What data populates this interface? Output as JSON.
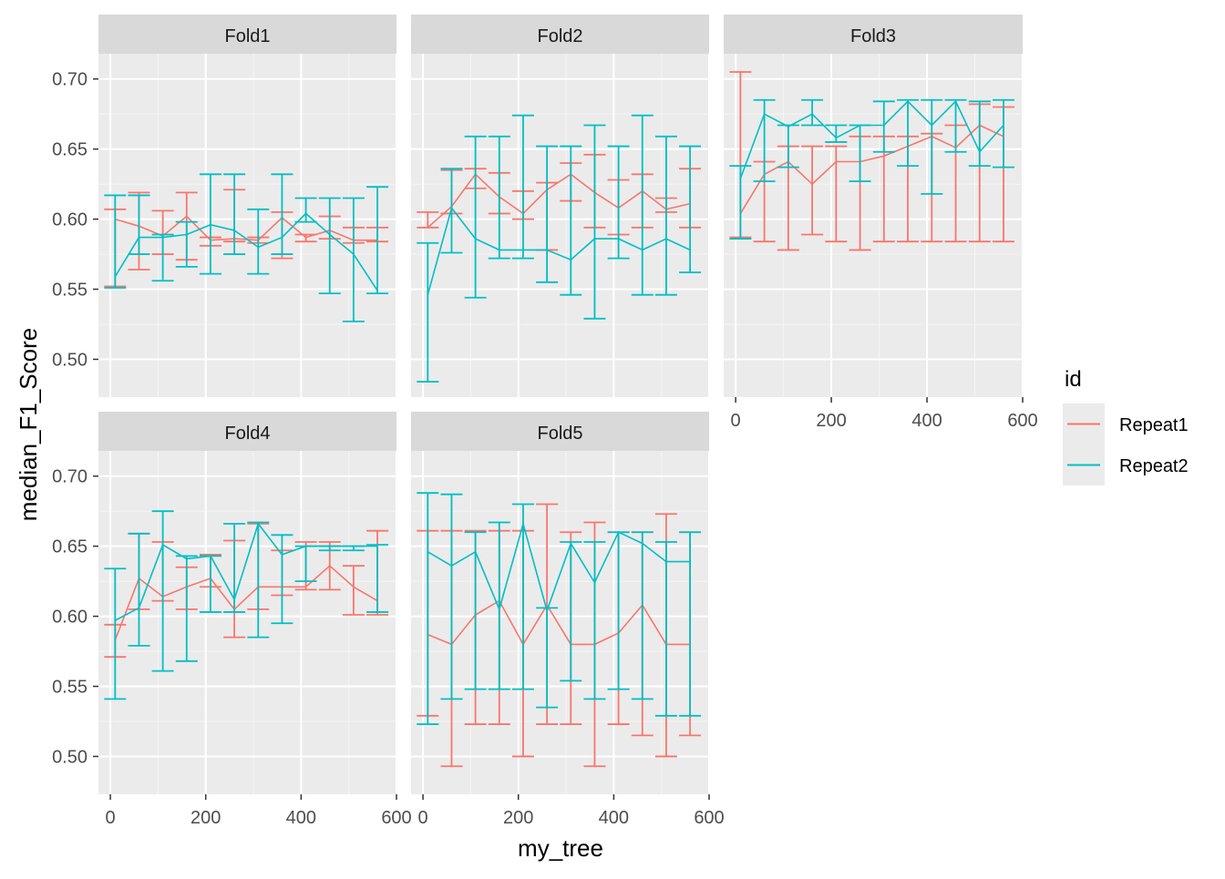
{
  "chart_data": {
    "type": "line",
    "facet_by": "fold",
    "xlabel": "my_tree",
    "ylabel": "median_F1_Score",
    "xlim": [
      -25,
      600
    ],
    "ylim": [
      0.473,
      0.718
    ],
    "x_ticks": [
      0,
      200,
      400,
      600
    ],
    "y_ticks": [
      0.5,
      0.55,
      0.6,
      0.65,
      0.7
    ],
    "y_tick_labels": [
      "0.50",
      "0.55",
      "0.60",
      "0.65",
      "0.70"
    ],
    "x_tick_labels": [
      "0",
      "200",
      "400",
      "600"
    ],
    "grid": true,
    "error_bars": true,
    "legend": {
      "title": "id",
      "position": "right",
      "entries": [
        {
          "name": "Repeat1",
          "color": "#F8766D"
        },
        {
          "name": "Repeat2",
          "color": "#00BFC4"
        }
      ]
    },
    "x": [
      10,
      60,
      110,
      160,
      210,
      260,
      310,
      360,
      410,
      460,
      510,
      560
    ],
    "panels": [
      {
        "title": "Fold1",
        "series": [
          {
            "name": "Repeat1",
            "y": [
              0.6,
              0.595,
              0.588,
              0.602,
              0.585,
              0.586,
              0.585,
              0.601,
              0.587,
              0.592,
              0.585,
              0.585
            ],
            "ymin": [
              0.552,
              0.564,
              0.575,
              0.571,
              0.581,
              0.584,
              0.583,
              0.572,
              0.584,
              0.586,
              0.583,
              0.584
            ],
            "ymax": [
              0.607,
              0.619,
              0.606,
              0.619,
              0.587,
              0.621,
              0.587,
              0.605,
              0.589,
              0.602,
              0.594,
              0.594
            ]
          },
          {
            "name": "Repeat2",
            "y": [
              0.559,
              0.587,
              0.587,
              0.589,
              0.596,
              0.592,
              0.58,
              0.587,
              0.604,
              0.589,
              0.575,
              0.549
            ],
            "ymin": [
              0.551,
              0.575,
              0.556,
              0.566,
              0.561,
              0.575,
              0.561,
              0.575,
              0.598,
              0.547,
              0.527,
              0.547
            ],
            "ymax": [
              0.617,
              0.617,
              0.589,
              0.598,
              0.632,
              0.632,
              0.607,
              0.632,
              0.615,
              0.615,
              0.615,
              0.623
            ]
          }
        ]
      },
      {
        "title": "Fold2",
        "series": [
          {
            "name": "Repeat1",
            "y": [
              0.594,
              0.609,
              0.632,
              0.616,
              0.604,
              0.621,
              0.632,
              0.619,
              0.608,
              0.62,
              0.607,
              0.611
            ],
            "ymin": [
              0.594,
              0.604,
              0.622,
              0.604,
              0.6,
              0.578,
              0.613,
              0.594,
              0.589,
              0.594,
              0.605,
              0.594
            ],
            "ymax": [
              0.605,
              0.635,
              0.636,
              0.633,
              0.62,
              0.626,
              0.64,
              0.646,
              0.628,
              0.632,
              0.615,
              0.636
            ]
          },
          {
            "name": "Repeat2",
            "y": [
              0.546,
              0.608,
              0.586,
              0.578,
              0.578,
              0.578,
              0.571,
              0.586,
              0.586,
              0.578,
              0.586,
              0.578
            ],
            "ymin": [
              0.484,
              0.576,
              0.544,
              0.572,
              0.572,
              0.555,
              0.546,
              0.529,
              0.572,
              0.546,
              0.546,
              0.562
            ],
            "ymax": [
              0.583,
              0.636,
              0.659,
              0.659,
              0.674,
              0.652,
              0.652,
              0.667,
              0.652,
              0.674,
              0.659,
              0.652
            ]
          }
        ]
      },
      {
        "title": "Fold3",
        "series": [
          {
            "name": "Repeat1",
            "y": [
              0.604,
              0.632,
              0.641,
              0.625,
              0.641,
              0.641,
              0.645,
              0.652,
              0.659,
              0.651,
              0.667,
              0.659
            ],
            "ymin": [
              0.587,
              0.584,
              0.578,
              0.589,
              0.584,
              0.578,
              0.584,
              0.584,
              0.584,
              0.584,
              0.584,
              0.584
            ],
            "ymax": [
              0.705,
              0.641,
              0.652,
              0.652,
              0.652,
              0.659,
              0.659,
              0.659,
              0.661,
              0.667,
              0.682,
              0.68
            ]
          },
          {
            "name": "Repeat2",
            "y": [
              0.629,
              0.675,
              0.666,
              0.675,
              0.658,
              0.667,
              0.667,
              0.684,
              0.667,
              0.684,
              0.648,
              0.667
            ],
            "ymin": [
              0.586,
              0.627,
              0.637,
              0.667,
              0.655,
              0.627,
              0.648,
              0.638,
              0.618,
              0.648,
              0.638,
              0.637
            ],
            "ymax": [
              0.638,
              0.685,
              0.667,
              0.685,
              0.667,
              0.667,
              0.684,
              0.685,
              0.685,
              0.685,
              0.684,
              0.685
            ]
          }
        ]
      },
      {
        "title": "Fold4",
        "series": [
          {
            "name": "Repeat1",
            "y": [
              0.583,
              0.627,
              0.614,
              0.621,
              0.627,
              0.605,
              0.621,
              0.621,
              0.621,
              0.636,
              0.621,
              0.611
            ],
            "ymin": [
              0.571,
              0.605,
              0.611,
              0.605,
              0.621,
              0.585,
              0.605,
              0.615,
              0.619,
              0.619,
              0.601,
              0.601
            ],
            "ymax": [
              0.594,
              0.659,
              0.653,
              0.635,
              0.644,
              0.654,
              0.666,
              0.647,
              0.653,
              0.653,
              0.636,
              0.661
            ]
          },
          {
            "name": "Repeat2",
            "y": [
              0.597,
              0.606,
              0.651,
              0.641,
              0.643,
              0.612,
              0.666,
              0.644,
              0.65,
              0.65,
              0.65,
              0.65
            ],
            "ymin": [
              0.541,
              0.579,
              0.561,
              0.568,
              0.603,
              0.603,
              0.585,
              0.595,
              0.625,
              0.647,
              0.647,
              0.603
            ],
            "ymax": [
              0.634,
              0.659,
              0.675,
              0.643,
              0.643,
              0.666,
              0.667,
              0.658,
              0.65,
              0.65,
              0.65,
              0.651
            ]
          }
        ]
      },
      {
        "title": "Fold5",
        "series": [
          {
            "name": "Repeat1",
            "y": [
              0.587,
              0.58,
              0.601,
              0.611,
              0.58,
              0.608,
              0.58,
              0.58,
              0.588,
              0.608,
              0.58,
              0.58
            ],
            "ymin": [
              0.529,
              0.493,
              0.523,
              0.523,
              0.5,
              0.523,
              0.523,
              0.493,
              0.523,
              0.515,
              0.5,
              0.515
            ],
            "ymax": [
              0.661,
              0.661,
              0.661,
              0.661,
              0.661,
              0.68,
              0.66,
              0.667,
              0.66,
              0.66,
              0.673,
              0.66
            ]
          },
          {
            "name": "Repeat2",
            "y": [
              0.646,
              0.636,
              0.646,
              0.605,
              0.666,
              0.604,
              0.652,
              0.624,
              0.66,
              0.652,
              0.639,
              0.639
            ],
            "ymin": [
              0.523,
              0.541,
              0.548,
              0.548,
              0.548,
              0.535,
              0.554,
              0.541,
              0.548,
              0.541,
              0.529,
              0.529
            ],
            "ymax": [
              0.688,
              0.687,
              0.66,
              0.667,
              0.68,
              0.606,
              0.653,
              0.653,
              0.66,
              0.66,
              0.653,
              0.66
            ]
          }
        ]
      }
    ]
  }
}
